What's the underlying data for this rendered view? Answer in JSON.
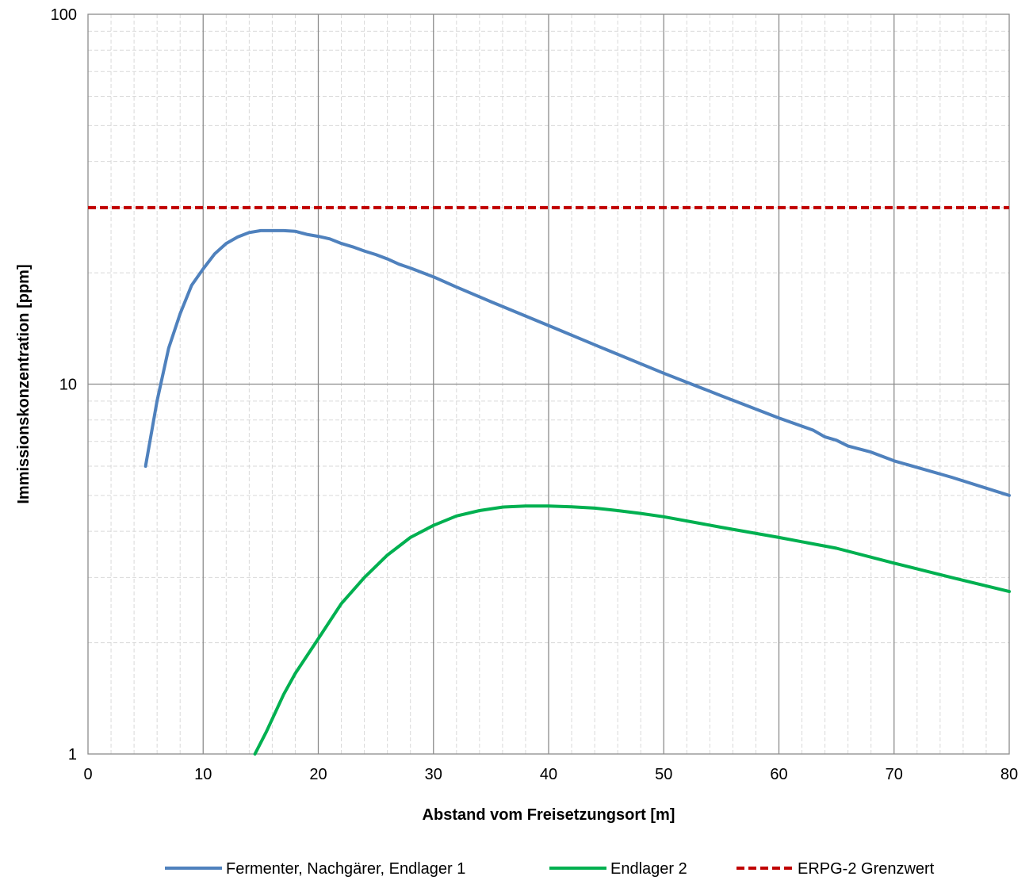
{
  "chart_data": {
    "type": "line",
    "title": "",
    "xlabel": "Abstand vom Freisetzungsort [m]",
    "ylabel": "Immissionskonzentration [ppm]",
    "xlim": [
      0,
      80
    ],
    "ylim": [
      1,
      100
    ],
    "yscale": "log",
    "grid": true,
    "legend_position": "bottom",
    "x_ticks": [
      "0",
      "10",
      "20",
      "30",
      "40",
      "50",
      "60",
      "70",
      "80"
    ],
    "y_ticks": [
      "1",
      "10",
      "100"
    ],
    "series": [
      {
        "name": "Fermenter, Nachgärer, Endlager 1",
        "color": "#4f81bd",
        "style": "solid",
        "points": [
          [
            5,
            6
          ],
          [
            6,
            9
          ],
          [
            7,
            12.5
          ],
          [
            8,
            15.5
          ],
          [
            9,
            18.5
          ],
          [
            10,
            20.5
          ],
          [
            11,
            22.5
          ],
          [
            12,
            24
          ],
          [
            13,
            25
          ],
          [
            14,
            25.7
          ],
          [
            15,
            26
          ],
          [
            16,
            26
          ],
          [
            17,
            26
          ],
          [
            18,
            25.9
          ],
          [
            19,
            25.4
          ],
          [
            20,
            25.1
          ],
          [
            21,
            24.7
          ],
          [
            22,
            24
          ],
          [
            23,
            23.5
          ],
          [
            24,
            22.9
          ],
          [
            25,
            22.4
          ],
          [
            26,
            21.8
          ],
          [
            27,
            21.1
          ],
          [
            28,
            20.6
          ],
          [
            30,
            19.5
          ],
          [
            32,
            18.3
          ],
          [
            35,
            16.7
          ],
          [
            40,
            14.4
          ],
          [
            45,
            12.4
          ],
          [
            50,
            10.7
          ],
          [
            55,
            9.3
          ],
          [
            60,
            8.1
          ],
          [
            63,
            7.5
          ],
          [
            64,
            7.2
          ],
          [
            65,
            7.05
          ],
          [
            66,
            6.8
          ],
          [
            68,
            6.55
          ],
          [
            70,
            6.2
          ],
          [
            75,
            5.6
          ],
          [
            80,
            5.0
          ]
        ]
      },
      {
        "name": "Endlager 2",
        "color": "#00b050",
        "style": "solid",
        "points": [
          [
            14.5,
            1.0
          ],
          [
            15.5,
            1.15
          ],
          [
            17,
            1.45
          ],
          [
            18,
            1.65
          ],
          [
            20,
            2.05
          ],
          [
            22,
            2.55
          ],
          [
            24,
            3.0
          ],
          [
            26,
            3.45
          ],
          [
            28,
            3.85
          ],
          [
            30,
            4.15
          ],
          [
            32,
            4.4
          ],
          [
            34,
            4.55
          ],
          [
            36,
            4.65
          ],
          [
            38,
            4.68
          ],
          [
            40,
            4.68
          ],
          [
            42,
            4.66
          ],
          [
            44,
            4.62
          ],
          [
            46,
            4.55
          ],
          [
            48,
            4.47
          ],
          [
            50,
            4.38
          ],
          [
            55,
            4.1
          ],
          [
            60,
            3.85
          ],
          [
            65,
            3.6
          ],
          [
            70,
            3.28
          ],
          [
            75,
            3.0
          ],
          [
            80,
            2.75
          ]
        ]
      },
      {
        "name": "ERPG-2 Grenzwert",
        "color": "#c00000",
        "style": "dashed",
        "points": [
          [
            0,
            30
          ],
          [
            80,
            30
          ]
        ]
      }
    ]
  }
}
